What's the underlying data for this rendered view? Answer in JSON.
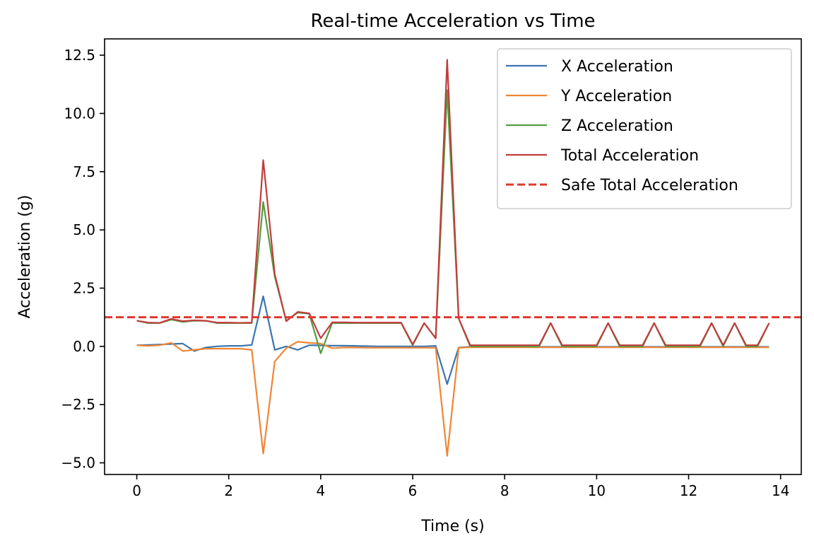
{
  "chart_data": {
    "type": "line",
    "title": "Real-time Acceleration vs Time",
    "xlabel": "Time (s)",
    "ylabel": "Acceleration (g)",
    "xlim": [
      -0.7,
      14.45
    ],
    "ylim": [
      -5.5,
      13.2
    ],
    "xticks": [
      0,
      2,
      4,
      6,
      8,
      10,
      12,
      14
    ],
    "xtick_labels": [
      "0",
      "2",
      "4",
      "6",
      "8",
      "10",
      "12",
      "14"
    ],
    "yticks": [
      -5.0,
      -2.5,
      0.0,
      2.5,
      5.0,
      7.5,
      10.0,
      12.5
    ],
    "ytick_labels": [
      "−5.0",
      "−2.5",
      "0.0",
      "2.5",
      "5.0",
      "7.5",
      "10.0",
      "12.5"
    ],
    "grid": false,
    "legend_position": "top-right",
    "x": [
      0,
      0.25,
      0.5,
      0.75,
      1.0,
      1.25,
      1.5,
      1.75,
      2.0,
      2.25,
      2.5,
      2.75,
      3.0,
      3.25,
      3.5,
      3.75,
      4.0,
      4.25,
      4.5,
      4.75,
      5.0,
      5.25,
      5.5,
      5.75,
      6.0,
      6.25,
      6.5,
      6.75,
      7.0,
      7.25,
      7.5,
      7.75,
      8.0,
      8.25,
      8.5,
      8.75,
      9.0,
      9.25,
      9.5,
      9.75,
      10.0,
      10.25,
      10.5,
      10.75,
      11.0,
      11.25,
      11.5,
      11.75,
      12.0,
      12.25,
      12.5,
      12.75,
      13.0,
      13.25,
      13.5,
      13.75
    ],
    "series": [
      {
        "name": "X Acceleration",
        "color": "#3b75af",
        "style": "solid",
        "values": [
          0.05,
          0.06,
          0.08,
          0.1,
          0.12,
          -0.2,
          -0.05,
          0.0,
          0.02,
          0.02,
          0.06,
          2.15,
          -0.15,
          0.0,
          -0.15,
          0.05,
          0.04,
          0.03,
          0.03,
          0.02,
          0.01,
          0.0,
          0.0,
          0.0,
          0.0,
          0.0,
          0.02,
          -1.62,
          -0.05,
          -0.02,
          -0.02,
          -0.02,
          -0.02,
          -0.02,
          -0.02,
          -0.02,
          -0.02,
          -0.02,
          -0.02,
          -0.02,
          -0.02,
          -0.02,
          -0.02,
          -0.02,
          -0.02,
          -0.02,
          -0.02,
          -0.02,
          -0.02,
          -0.02,
          -0.02,
          -0.02,
          -0.02,
          -0.02,
          -0.02,
          -0.02
        ]
      },
      {
        "name": "Y Acceleration",
        "color": "#ef8636",
        "style": "solid",
        "values": [
          0.05,
          0.02,
          0.05,
          0.15,
          -0.2,
          -0.15,
          -0.1,
          -0.1,
          -0.1,
          -0.1,
          -0.15,
          -4.6,
          -0.65,
          -0.08,
          0.2,
          0.15,
          0.12,
          -0.08,
          -0.05,
          -0.05,
          -0.06,
          -0.06,
          -0.06,
          -0.06,
          -0.06,
          -0.06,
          -0.06,
          -4.7,
          -0.06,
          -0.04,
          -0.04,
          -0.04,
          -0.04,
          -0.04,
          -0.04,
          -0.04,
          -0.04,
          -0.04,
          -0.04,
          -0.04,
          -0.04,
          -0.04,
          -0.04,
          -0.04,
          -0.04,
          -0.04,
          -0.04,
          -0.04,
          -0.04,
          -0.04,
          -0.04,
          -0.04,
          -0.04,
          -0.04,
          -0.04,
          -0.04
        ]
      },
      {
        "name": "Z Acceleration",
        "color": "#529e3f",
        "style": "solid",
        "values": [
          1.1,
          1.0,
          1.0,
          1.15,
          1.05,
          1.1,
          1.1,
          1.0,
          1.0,
          1.0,
          1.0,
          6.2,
          3.0,
          1.1,
          1.45,
          1.4,
          -0.3,
          1.0,
          1.0,
          1.0,
          1.0,
          1.0,
          1.0,
          1.0,
          0.05,
          1.0,
          0.35,
          11.0,
          1.2,
          0.0,
          0.0,
          0.0,
          0.0,
          0.0,
          0.0,
          0.0,
          1.0,
          0.0,
          0.0,
          0.0,
          0.0,
          1.0,
          0.0,
          0.0,
          0.0,
          1.0,
          0.0,
          0.0,
          0.0,
          0.0,
          1.0,
          0.0,
          1.0,
          0.0,
          0.0,
          1.0
        ]
      },
      {
        "name": "Total Acceleration",
        "color": "#c03d3e",
        "style": "solid",
        "values": [
          1.1,
          1.02,
          1.01,
          1.18,
          1.08,
          1.12,
          1.1,
          1.02,
          1.02,
          1.01,
          1.02,
          8.0,
          3.1,
          1.08,
          1.48,
          1.42,
          0.35,
          1.03,
          1.03,
          1.02,
          1.02,
          1.02,
          1.02,
          1.02,
          0.08,
          1.0,
          0.35,
          12.3,
          1.2,
          0.05,
          0.05,
          0.05,
          0.05,
          0.05,
          0.05,
          0.05,
          1.0,
          0.05,
          0.05,
          0.05,
          0.05,
          1.0,
          0.05,
          0.05,
          0.05,
          1.0,
          0.05,
          0.05,
          0.05,
          0.05,
          1.0,
          0.05,
          1.0,
          0.05,
          0.05,
          1.0
        ]
      }
    ],
    "reference_lines": [
      {
        "name": "Safe Total Acceleration",
        "color": "#e0382e",
        "style": "dashed",
        "y": 1.25
      }
    ]
  }
}
